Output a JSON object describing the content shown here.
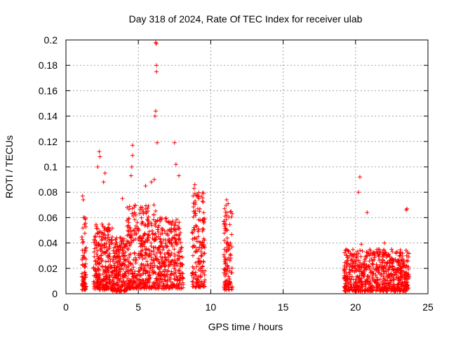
{
  "chart_data": {
    "type": "scatter",
    "title": "Day 318 of 2024, Rate Of TEC Index for receiver ulab",
    "xlabel": "GPS time / hours",
    "ylabel": "ROTI / TECUs",
    "xlim": [
      0,
      25
    ],
    "ylim": [
      0,
      0.2
    ],
    "xticks": [
      0,
      5,
      10,
      15,
      20,
      25
    ],
    "xtick_labels": [
      "0",
      "5",
      "10",
      "15",
      "20",
      "25"
    ],
    "yticks": [
      0,
      0.02,
      0.04,
      0.06,
      0.08,
      0.1,
      0.12,
      0.14,
      0.16,
      0.18,
      0.2
    ],
    "ytick_labels": [
      "0",
      "0.02",
      "0.04",
      "0.06",
      "0.08",
      "0.1",
      "0.12",
      "0.14",
      "0.16",
      "0.18",
      "0.2"
    ],
    "grid": true,
    "marker": "+",
    "color": "#ff0000",
    "series": [
      {
        "name": "ROTI",
        "clusters": [
          {
            "x_range": [
              1.1,
              1.4
            ],
            "y_range": [
              0.003,
              0.06
            ],
            "count": 70
          },
          {
            "x_range": [
              1.9,
              3.2
            ],
            "y_range": [
              0.003,
              0.055
            ],
            "count": 260
          },
          {
            "x_range": [
              3.2,
              4.2
            ],
            "y_range": [
              0.002,
              0.045
            ],
            "count": 200
          },
          {
            "x_range": [
              4.2,
              6.2
            ],
            "y_range": [
              0.004,
              0.07
            ],
            "count": 380
          },
          {
            "x_range": [
              6.2,
              8.1
            ],
            "y_range": [
              0.004,
              0.06
            ],
            "count": 320
          },
          {
            "x_range": [
              8.7,
              9.6
            ],
            "y_range": [
              0.005,
              0.08
            ],
            "count": 160
          },
          {
            "x_range": [
              10.9,
              11.5
            ],
            "y_range": [
              0.003,
              0.07
            ],
            "count": 110
          },
          {
            "x_range": [
              19.2,
              23.7
            ],
            "y_range": [
              0.002,
              0.035
            ],
            "count": 700
          }
        ],
        "outliers": [
          {
            "x": 1.15,
            "y": 0.077
          },
          {
            "x": 1.2,
            "y": 0.074
          },
          {
            "x": 2.3,
            "y": 0.112
          },
          {
            "x": 2.35,
            "y": 0.108
          },
          {
            "x": 2.2,
            "y": 0.1
          },
          {
            "x": 2.7,
            "y": 0.095
          },
          {
            "x": 2.6,
            "y": 0.088
          },
          {
            "x": 3.9,
            "y": 0.075
          },
          {
            "x": 4.6,
            "y": 0.117
          },
          {
            "x": 4.6,
            "y": 0.109
          },
          {
            "x": 4.55,
            "y": 0.1
          },
          {
            "x": 4.5,
            "y": 0.093
          },
          {
            "x": 5.5,
            "y": 0.085
          },
          {
            "x": 5.9,
            "y": 0.088
          },
          {
            "x": 6.1,
            "y": 0.09
          },
          {
            "x": 6.2,
            "y": 0.198
          },
          {
            "x": 6.25,
            "y": 0.197
          },
          {
            "x": 6.25,
            "y": 0.18
          },
          {
            "x": 6.25,
            "y": 0.175
          },
          {
            "x": 6.2,
            "y": 0.144
          },
          {
            "x": 6.15,
            "y": 0.14
          },
          {
            "x": 6.3,
            "y": 0.119
          },
          {
            "x": 7.5,
            "y": 0.119
          },
          {
            "x": 7.6,
            "y": 0.102
          },
          {
            "x": 7.8,
            "y": 0.093
          },
          {
            "x": 8.9,
            "y": 0.086
          },
          {
            "x": 8.85,
            "y": 0.083
          },
          {
            "x": 11.1,
            "y": 0.074
          },
          {
            "x": 11.2,
            "y": 0.071
          },
          {
            "x": 20.3,
            "y": 0.092
          },
          {
            "x": 20.2,
            "y": 0.08
          },
          {
            "x": 20.8,
            "y": 0.064
          },
          {
            "x": 23.5,
            "y": 0.066
          },
          {
            "x": 23.55,
            "y": 0.067
          },
          {
            "x": 20.4,
            "y": 0.039
          },
          {
            "x": 22.0,
            "y": 0.04
          }
        ]
      }
    ]
  }
}
